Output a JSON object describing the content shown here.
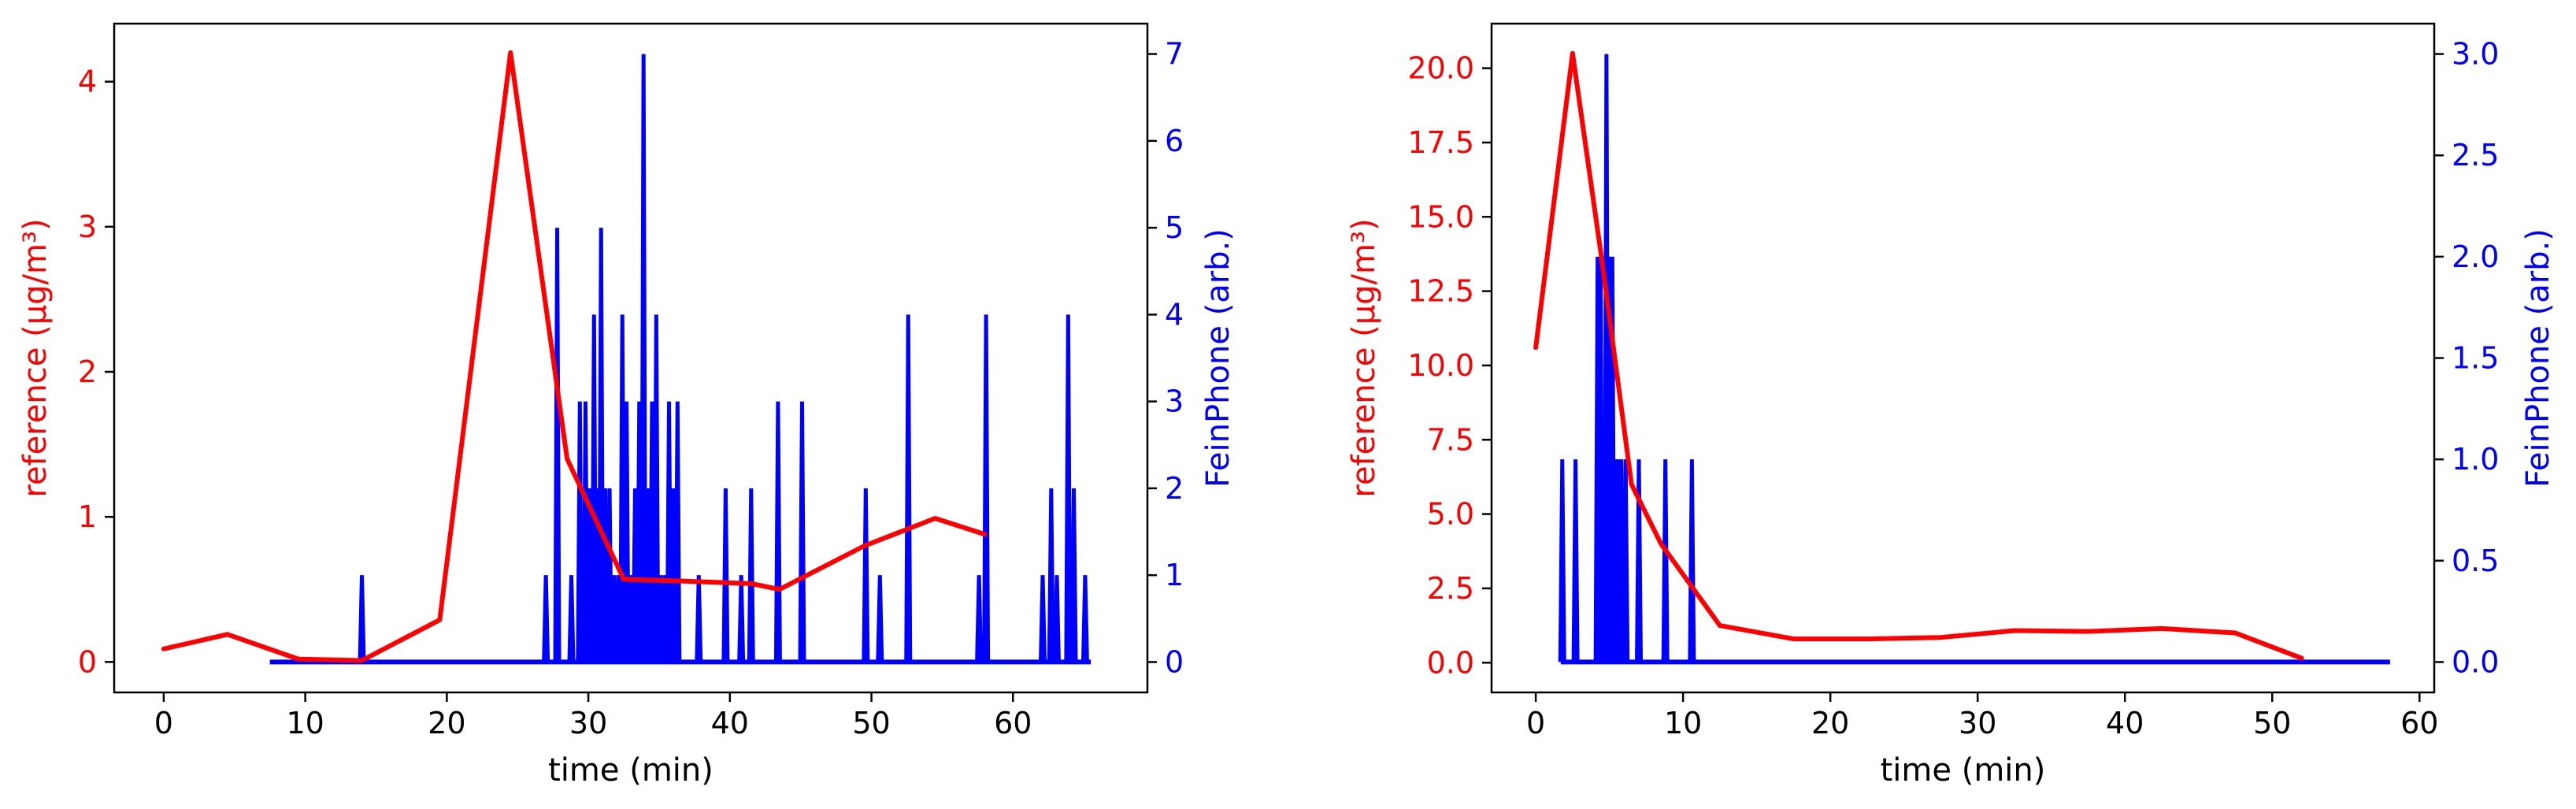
{
  "colors": {
    "reference": "#ff0000",
    "feinphone": "#0000ff",
    "axes": "#000000"
  },
  "chart_data": [
    {
      "type": "line",
      "xlabel": "time (min)",
      "ylabel_left": "reference (µg/m³)",
      "ylabel_right": "FeinPhone (arb.)",
      "xlim": [
        -3.5,
        69.5
      ],
      "ylim_left": [
        -0.21,
        4.4
      ],
      "ylim_right": [
        -0.35,
        7.35
      ],
      "x_ticks": [
        0,
        10,
        20,
        30,
        40,
        50,
        60
      ],
      "y_left_ticks": [
        0,
        1,
        2,
        3,
        4
      ],
      "y_right_ticks": [
        0,
        1,
        2,
        3,
        4,
        5,
        6,
        7
      ],
      "grid": false,
      "series": [
        {
          "name": "reference",
          "axis": "left",
          "color": "#ff0000",
          "x": [
            0,
            4.5,
            9.5,
            14,
            19.5,
            24.5,
            28.5,
            32.5,
            36,
            41.5,
            43.5,
            49.5,
            54.5,
            58
          ],
          "y": [
            0.09,
            0.19,
            0.02,
            0.01,
            0.29,
            4.2,
            1.4,
            0.57,
            0.56,
            0.54,
            0.5,
            0.8,
            0.99,
            0.88
          ]
        },
        {
          "name": "FeinPhone",
          "axis": "right",
          "color": "#0000ff",
          "x_range": [
            7.5,
            65.5
          ],
          "baseline": 0,
          "spikes": [
            {
              "x": 14,
              "y": 1
            },
            {
              "x": 27.0,
              "y": 1
            },
            {
              "x": 27.8,
              "y": 5
            },
            {
              "x": 28.8,
              "y": 1
            },
            {
              "x": 29.4,
              "y": 3
            },
            {
              "x": 29.8,
              "y": 3
            },
            {
              "x": 30.1,
              "y": 2
            },
            {
              "x": 30.4,
              "y": 4
            },
            {
              "x": 30.6,
              "y": 2
            },
            {
              "x": 30.9,
              "y": 5
            },
            {
              "x": 31.2,
              "y": 2
            },
            {
              "x": 31.5,
              "y": 2
            },
            {
              "x": 31.8,
              "y": 1
            },
            {
              "x": 32.1,
              "y": 1
            },
            {
              "x": 32.4,
              "y": 4
            },
            {
              "x": 32.7,
              "y": 3
            },
            {
              "x": 33.0,
              "y": 1
            },
            {
              "x": 33.3,
              "y": 2
            },
            {
              "x": 33.6,
              "y": 3
            },
            {
              "x": 33.9,
              "y": 7
            },
            {
              "x": 34.2,
              "y": 2
            },
            {
              "x": 34.5,
              "y": 3
            },
            {
              "x": 34.8,
              "y": 4
            },
            {
              "x": 35.1,
              "y": 1
            },
            {
              "x": 35.4,
              "y": 1
            },
            {
              "x": 35.7,
              "y": 3
            },
            {
              "x": 36.0,
              "y": 2
            },
            {
              "x": 36.3,
              "y": 3
            },
            {
              "x": 37.8,
              "y": 1
            },
            {
              "x": 39.7,
              "y": 2
            },
            {
              "x": 40.8,
              "y": 1
            },
            {
              "x": 41.5,
              "y": 2
            },
            {
              "x": 43.4,
              "y": 3
            },
            {
              "x": 45.1,
              "y": 3
            },
            {
              "x": 49.6,
              "y": 2
            },
            {
              "x": 50.6,
              "y": 1
            },
            {
              "x": 52.6,
              "y": 4
            },
            {
              "x": 57.6,
              "y": 1
            },
            {
              "x": 58.1,
              "y": 4
            },
            {
              "x": 62.1,
              "y": 1
            },
            {
              "x": 62.7,
              "y": 2
            },
            {
              "x": 63.1,
              "y": 1
            },
            {
              "x": 63.9,
              "y": 4
            },
            {
              "x": 64.3,
              "y": 2
            },
            {
              "x": 65.1,
              "y": 1
            }
          ]
        }
      ]
    },
    {
      "type": "line",
      "xlabel": "time (min)",
      "ylabel_left": "reference (µg/m³)",
      "ylabel_right": "FeinPhone (arb.)",
      "xlim": [
        -3,
        61
      ],
      "ylim_left": [
        -1.0,
        21.5
      ],
      "ylim_right": [
        -0.15,
        3.15
      ],
      "x_ticks": [
        0,
        10,
        20,
        30,
        40,
        50,
        60
      ],
      "y_left_ticks": [
        0.0,
        2.5,
        5.0,
        7.5,
        10.0,
        12.5,
        15.0,
        17.5,
        20.0
      ],
      "y_right_ticks": [
        0.0,
        0.5,
        1.0,
        1.5,
        2.0,
        2.5,
        3.0
      ],
      "y_left_tick_labels": [
        "0.0",
        "2.5",
        "5.0",
        "7.5",
        "10.0",
        "12.5",
        "15.0",
        "17.5",
        "20.0"
      ],
      "y_right_tick_labels": [
        "0.0",
        "0.5",
        "1.0",
        "1.5",
        "2.0",
        "2.5",
        "3.0"
      ],
      "grid": false,
      "series": [
        {
          "name": "reference",
          "axis": "left",
          "color": "#ff0000",
          "x": [
            0,
            2.5,
            4.5,
            6.5,
            8.5,
            12.5,
            17.5,
            22.5,
            27.5,
            32.5,
            37.5,
            42.5,
            47.5,
            52
          ],
          "y": [
            10.6,
            20.5,
            13.5,
            6.0,
            4.0,
            1.25,
            0.8,
            0.8,
            0.85,
            1.08,
            1.05,
            1.15,
            1.0,
            0.15
          ]
        },
        {
          "name": "FeinPhone",
          "axis": "right",
          "color": "#0000ff",
          "x_range": [
            1.7,
            58
          ],
          "baseline": 0,
          "spikes": [
            {
              "x": 1.8,
              "y": 1
            },
            {
              "x": 2.7,
              "y": 1
            },
            {
              "x": 4.2,
              "y": 2
            },
            {
              "x": 4.4,
              "y": 2
            },
            {
              "x": 4.6,
              "y": 1
            },
            {
              "x": 4.8,
              "y": 3
            },
            {
              "x": 5.0,
              "y": 2
            },
            {
              "x": 5.2,
              "y": 2
            },
            {
              "x": 5.4,
              "y": 1
            },
            {
              "x": 5.6,
              "y": 1
            },
            {
              "x": 5.8,
              "y": 1
            },
            {
              "x": 6.1,
              "y": 1
            },
            {
              "x": 7.0,
              "y": 1
            },
            {
              "x": 8.8,
              "y": 1
            },
            {
              "x": 10.6,
              "y": 1
            }
          ]
        }
      ]
    }
  ]
}
